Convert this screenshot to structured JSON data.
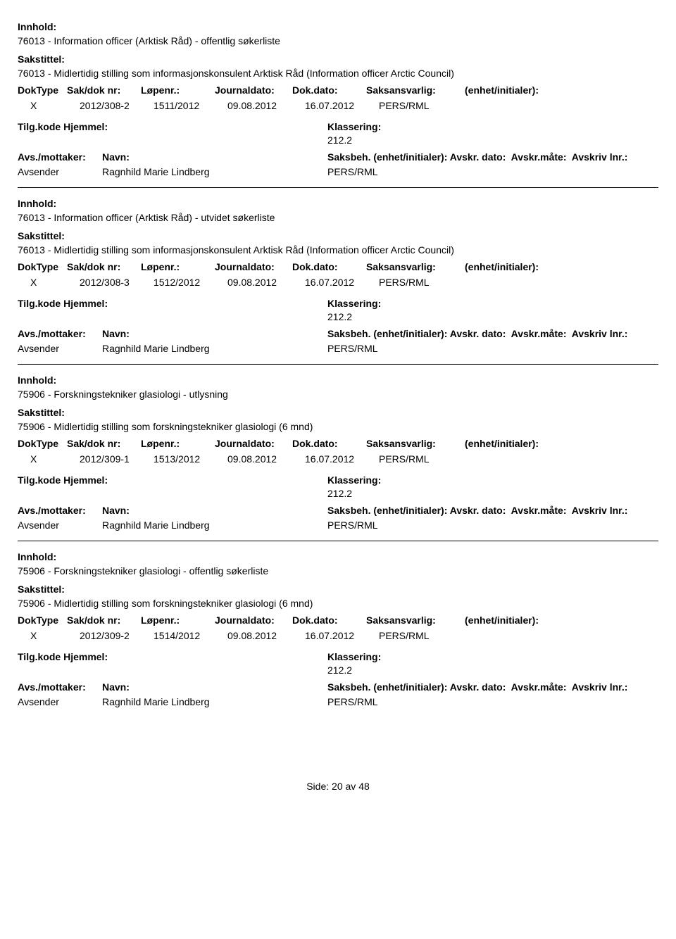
{
  "labels": {
    "innhold": "Innhold:",
    "sakstittel": "Sakstittel:",
    "doktype": "DokType",
    "sakdok": "Sak/dok nr:",
    "lopenr": "Løpenr.:",
    "journaldato": "Journaldato:",
    "dokdato": "Dok.dato:",
    "saksansvarlig": "Saksansvarlig:",
    "enhet": "(enhet/initialer):",
    "tilgkode": "Tilg.kode",
    "hjemmel": "Hjemmel:",
    "klassering": "Klassering:",
    "avsmottaker": "Avs./mottaker:",
    "navn": "Navn:",
    "saksbeh": "Saksbeh.",
    "enhet2": "(enhet/initialer):",
    "avskrdato": "Avskr. dato:",
    "avskrmate": "Avskr.måte:",
    "avskrivlnr": "Avskriv lnr.:",
    "avsender": "Avsender"
  },
  "footer": {
    "side_label": "Side:",
    "page": "20",
    "av": "av",
    "total": "48"
  },
  "records": [
    {
      "innhold": "76013 - Information officer (Arktisk Råd) - offentlig søkerliste",
      "sakstittel": "76013 - Midlertidig stilling som informasjonskonsulent Arktisk Råd (Information officer Arctic Council)",
      "doktype": "X",
      "sakdok": "2012/308-2",
      "lopenr": "1511/2012",
      "journaldato": "09.08.2012",
      "dokdato": "16.07.2012",
      "saksansvarlig": "PERS/RML",
      "klassering": "212.2",
      "sender_name": "Ragnhild Marie Lindberg",
      "saksbeh_val": "PERS/RML"
    },
    {
      "innhold": "76013 - Information officer (Arktisk Råd) - utvidet søkerliste",
      "sakstittel": "76013 - Midlertidig stilling som informasjonskonsulent Arktisk Råd (Information officer Arctic Council)",
      "doktype": "X",
      "sakdok": "2012/308-3",
      "lopenr": "1512/2012",
      "journaldato": "09.08.2012",
      "dokdato": "16.07.2012",
      "saksansvarlig": "PERS/RML",
      "klassering": "212.2",
      "sender_name": "Ragnhild Marie Lindberg",
      "saksbeh_val": "PERS/RML"
    },
    {
      "innhold": "75906 - Forskningstekniker glasiologi - utlysning",
      "sakstittel": "75906 - Midlertidig stilling som forskningstekniker glasiologi (6 mnd)",
      "doktype": "X",
      "sakdok": "2012/309-1",
      "lopenr": "1513/2012",
      "journaldato": "09.08.2012",
      "dokdato": "16.07.2012",
      "saksansvarlig": "PERS/RML",
      "klassering": "212.2",
      "sender_name": "Ragnhild Marie Lindberg",
      "saksbeh_val": "PERS/RML"
    },
    {
      "innhold": "75906 - Forskningstekniker glasiologi - offentlig søkerliste",
      "sakstittel": "75906 - Midlertidig stilling som forskningstekniker glasiologi (6 mnd)",
      "doktype": "X",
      "sakdok": "2012/309-2",
      "lopenr": "1514/2012",
      "journaldato": "09.08.2012",
      "dokdato": "16.07.2012",
      "saksansvarlig": "PERS/RML",
      "klassering": "212.2",
      "sender_name": "Ragnhild Marie Lindberg",
      "saksbeh_val": "PERS/RML"
    }
  ]
}
